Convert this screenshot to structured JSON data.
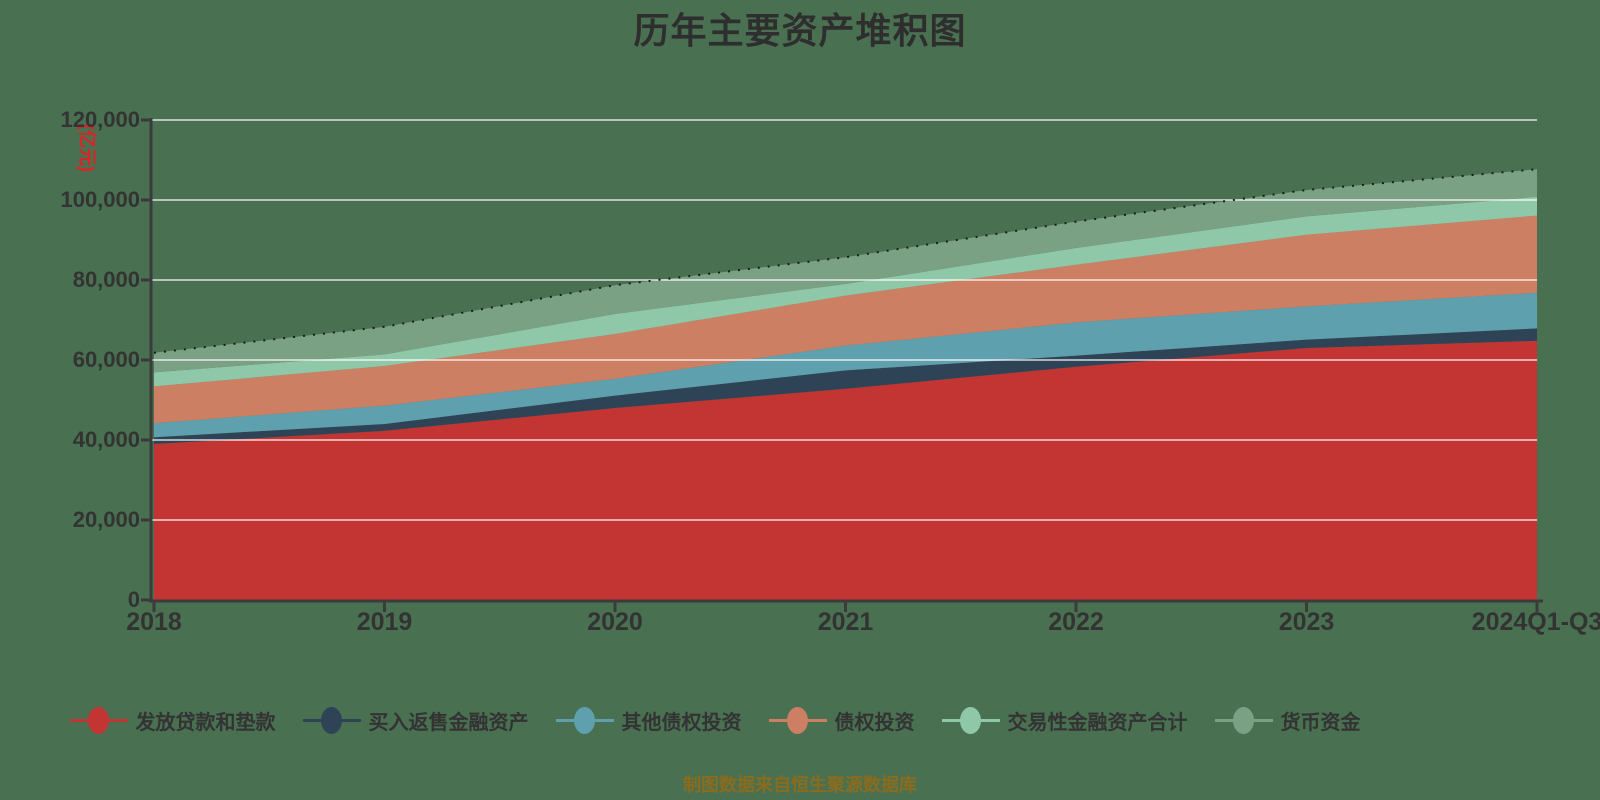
{
  "title": "历年主要资产堆积图",
  "y_axis": {
    "unit_label": "(亿元)",
    "unit_color": "#e02222",
    "tick_values": [
      0,
      20000,
      40000,
      60000,
      80000,
      100000,
      120000
    ]
  },
  "x_axis": {
    "categories": [
      "2018",
      "2019",
      "2020",
      "2021",
      "2022",
      "2023",
      "2024Q1-Q3"
    ]
  },
  "footer": {
    "source_note": "制图数据来自恒生聚源数据库",
    "color": "#8a6c1e"
  },
  "style_colors": {
    "page_background": "#4a7052",
    "axis_line": "#3b3b3b",
    "grid_line": "rgba(255,255,255,0.6)",
    "text": "#333333",
    "total_dotted_line": "#1a1a1a"
  },
  "chart_data": {
    "type": "area",
    "stacked": true,
    "title": "历年主要资产堆积图",
    "xlabel": "",
    "ylabel": "(亿元)",
    "ylim": [
      0,
      120000
    ],
    "grid": true,
    "legend_position": "bottom",
    "categories": [
      "2018",
      "2019",
      "2020",
      "2021",
      "2022",
      "2023",
      "2024Q1-Q3"
    ],
    "series": [
      {
        "name": "发放贷款和垫款",
        "color": "#c23533",
        "values": [
          39000,
          42300,
          48000,
          52800,
          58300,
          63000,
          64800
        ]
      },
      {
        "name": "买入返售金融资产",
        "color": "#2f4356",
        "values": [
          1700,
          1700,
          3100,
          4600,
          2800,
          2100,
          3100
        ]
      },
      {
        "name": "其他债权投资",
        "color": "#5fa0ae",
        "values": [
          3500,
          4600,
          4200,
          6200,
          8300,
          8300,
          8900
        ]
      },
      {
        "name": "债权投资",
        "color": "#cd7f64",
        "values": [
          9200,
          9900,
          11200,
          12500,
          14400,
          17900,
          19300
        ]
      },
      {
        "name": "交易性金融资产合计",
        "color": "#8fc8a8",
        "values": [
          3500,
          2900,
          5000,
          2900,
          4200,
          4600,
          4700
        ]
      },
      {
        "name": "货币资金",
        "color": "#7ba184",
        "values": [
          4900,
          6900,
          7200,
          6700,
          6600,
          6600,
          6900
        ]
      }
    ],
    "stack_totals": [
      61800,
      68300,
      78700,
      85700,
      94600,
      102500,
      107700
    ]
  }
}
